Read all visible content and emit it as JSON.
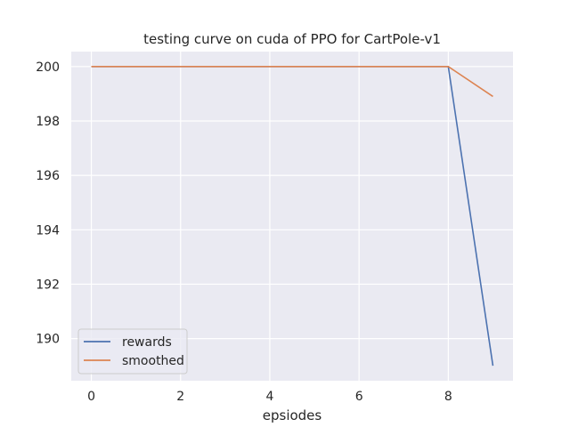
{
  "chart_data": {
    "type": "line",
    "title": "testing curve on cuda of PPO for CartPole-v1",
    "xlabel": "epsiodes",
    "ylabel": "",
    "x": [
      0,
      1,
      2,
      3,
      4,
      5,
      6,
      7,
      8,
      9
    ],
    "xlim": [
      -0.45,
      9.45
    ],
    "ylim": [
      188.45,
      200.55
    ],
    "xticks": [
      0,
      2,
      4,
      6,
      8
    ],
    "yticks": [
      190,
      192,
      194,
      196,
      198,
      200
    ],
    "grid": true,
    "legend_position": "bottom-left",
    "background_color": "#eaeaf2",
    "series": [
      {
        "name": "rewards",
        "color": "#4c72b0",
        "values": [
          200,
          200,
          200,
          200,
          200,
          200,
          200,
          200,
          200,
          189
        ]
      },
      {
        "name": "smoothed",
        "color": "#dd8452",
        "values": [
          200,
          200,
          200,
          200,
          200,
          200,
          200,
          200,
          200,
          198.9
        ]
      }
    ]
  }
}
